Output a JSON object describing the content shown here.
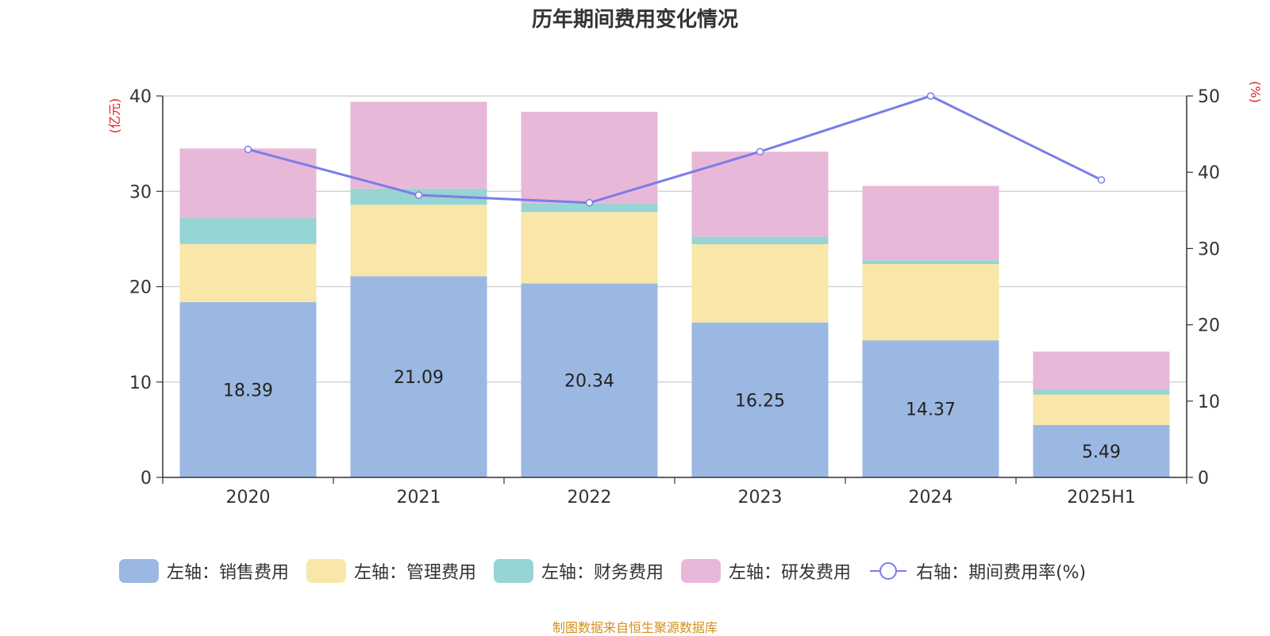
{
  "title": "历年期间费用变化情况",
  "source": "制图数据来自恒生聚源数据库",
  "chart_data": {
    "type": "bar",
    "stacked": true,
    "categories": [
      "2020",
      "2021",
      "2022",
      "2023",
      "2024",
      "2025H1"
    ],
    "left_axis": {
      "unit_label": "(亿元)",
      "ylim": [
        0,
        40
      ],
      "ticks": [
        "0",
        "10",
        "20",
        "30",
        "40"
      ]
    },
    "right_axis": {
      "unit_label": "(%)",
      "ylim": [
        0,
        50
      ],
      "ticks": [
        "0",
        "10",
        "20",
        "30",
        "40",
        "50"
      ]
    },
    "series": [
      {
        "name": "左轴：销售费用",
        "axis": "left",
        "type": "bar",
        "color": "#9bb8e2",
        "values": [
          18.39,
          21.09,
          20.34,
          16.25,
          14.37,
          5.49
        ],
        "data_labels": [
          "18.39",
          "21.09",
          "20.34",
          "16.25",
          "14.37",
          "5.49"
        ]
      },
      {
        "name": "左轴：管理费用",
        "axis": "left",
        "type": "bar",
        "color": "#f8e7a8",
        "values": [
          6.1,
          7.5,
          7.5,
          8.2,
          8.0,
          3.2
        ]
      },
      {
        "name": "左轴：财务费用",
        "axis": "left",
        "type": "bar",
        "color": "#97d4d4",
        "values": [
          2.7,
          1.7,
          0.9,
          0.8,
          0.4,
          0.5
        ]
      },
      {
        "name": "左轴：研发费用",
        "axis": "left",
        "type": "bar",
        "color": "#e8b8d8",
        "values": [
          7.3,
          9.1,
          9.6,
          8.9,
          7.8,
          4.0
        ]
      },
      {
        "name": "右轴：期间费用率(%)",
        "axis": "right",
        "type": "line",
        "color": "#7b7de8",
        "values": [
          43.0,
          37.0,
          36.0,
          42.7,
          50.0,
          39.0
        ]
      }
    ],
    "grid": true,
    "legend_position": "bottom"
  }
}
